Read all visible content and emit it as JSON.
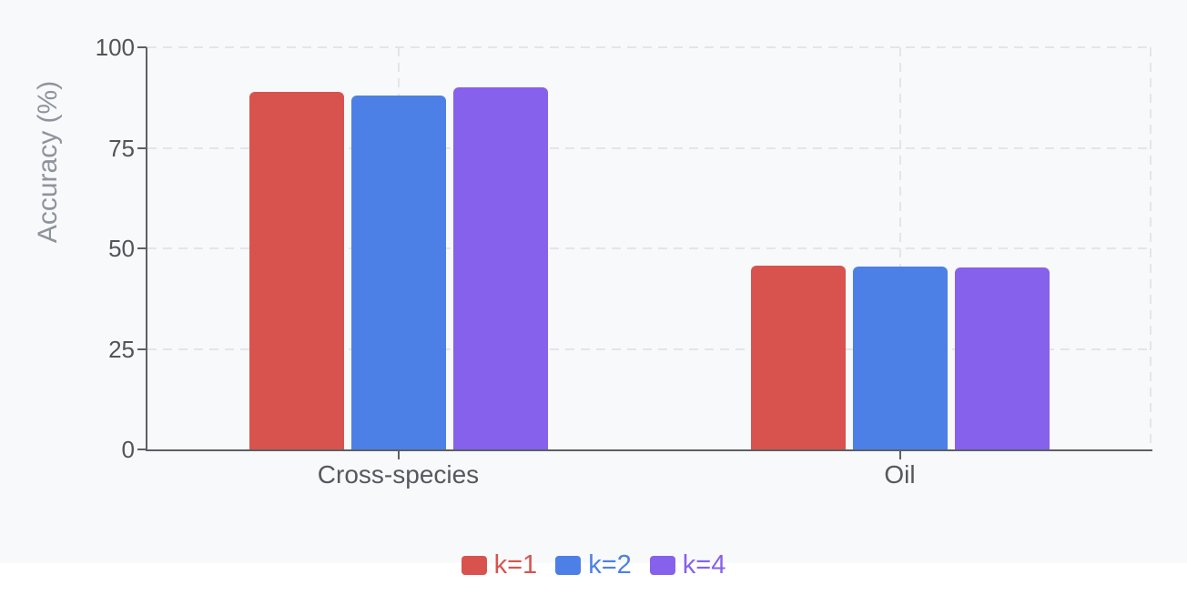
{
  "background": {
    "canvas_color": "#f8f9fb",
    "page_color": "#ffffff"
  },
  "chart_data": {
    "type": "bar",
    "title": "",
    "xlabel": "",
    "ylabel": "Accuracy (%)",
    "categories": [
      "Cross-species",
      "Oil"
    ],
    "series": [
      {
        "name": "k=1",
        "color": "#d9534e",
        "values": [
          89,
          45.7
        ]
      },
      {
        "name": "k=2",
        "color": "#4d80e6",
        "values": [
          88,
          45.4
        ]
      },
      {
        "name": "k=4",
        "color": "#8661ec",
        "values": [
          90,
          45.2
        ]
      }
    ],
    "ylim": [
      0,
      100
    ],
    "yticks": [
      0,
      25,
      50,
      75,
      100
    ],
    "legend_position": "bottom",
    "grid": {
      "horizontal": true,
      "vertical": true,
      "line_style": "dashed",
      "color": "#e4e5e9"
    },
    "axis_color": "#5d6065",
    "tick_label_color": "#515459",
    "category_label_color": "#55585e",
    "axis_title_color": "#8e939c"
  }
}
